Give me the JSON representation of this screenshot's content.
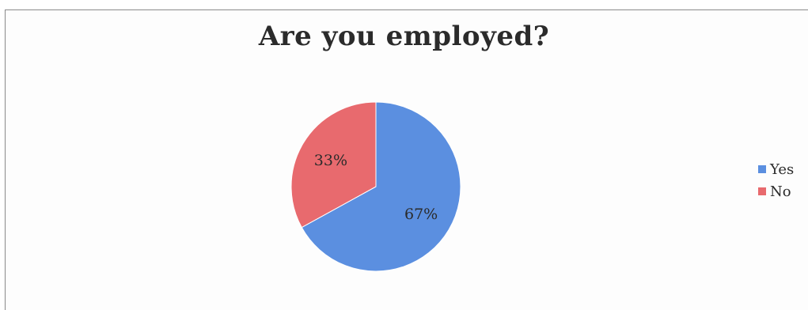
{
  "chart_data": {
    "type": "pie",
    "title": "Are you employed?",
    "categories": [
      "Yes",
      "No"
    ],
    "values": [
      67,
      33
    ],
    "data_labels": [
      "67%",
      "33%"
    ],
    "colors": [
      "#5b8fe0",
      "#e86a6e"
    ],
    "legend_position": "right"
  }
}
